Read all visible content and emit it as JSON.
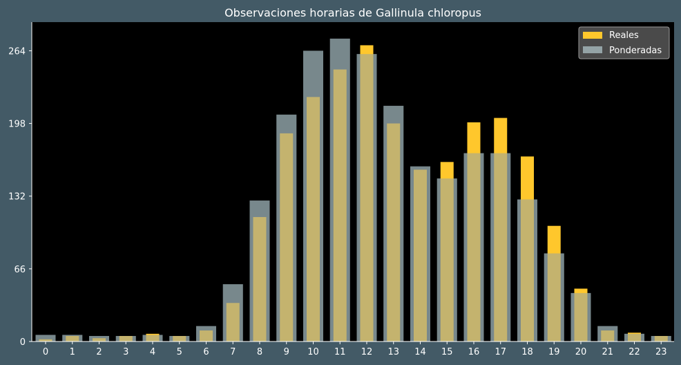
{
  "chart_data": {
    "type": "bar",
    "title": "Observaciones horarias de Gallinula chloropus",
    "xlabel": "",
    "ylabel": "",
    "categories": [
      "0",
      "1",
      "2",
      "3",
      "4",
      "5",
      "6",
      "7",
      "8",
      "9",
      "10",
      "11",
      "12",
      "13",
      "14",
      "15",
      "16",
      "17",
      "18",
      "19",
      "20",
      "21",
      "22",
      "23"
    ],
    "yticks": [
      "0",
      "66",
      "132",
      "198",
      "264"
    ],
    "ylim": [
      0,
      290
    ],
    "legend_position": "top-right",
    "grid": false,
    "series": [
      {
        "name": "Reales",
        "color": "#ffc72c",
        "values": [
          2,
          5,
          3,
          5,
          7,
          5,
          10,
          35,
          113,
          189,
          222,
          247,
          269,
          198,
          156,
          163,
          199,
          203,
          168,
          105,
          48,
          10,
          8,
          5
        ]
      },
      {
        "name": "Ponderadas",
        "color": "#94a3a6",
        "values": [
          6,
          6,
          5,
          5,
          6,
          5,
          14,
          52,
          128,
          206,
          264,
          275,
          261,
          214,
          159,
          148,
          171,
          171,
          129,
          80,
          44,
          14,
          7,
          5
        ]
      }
    ]
  },
  "colors": {
    "page_background": "#435a66",
    "plot_background": "#000000",
    "text": "#ffffff"
  }
}
